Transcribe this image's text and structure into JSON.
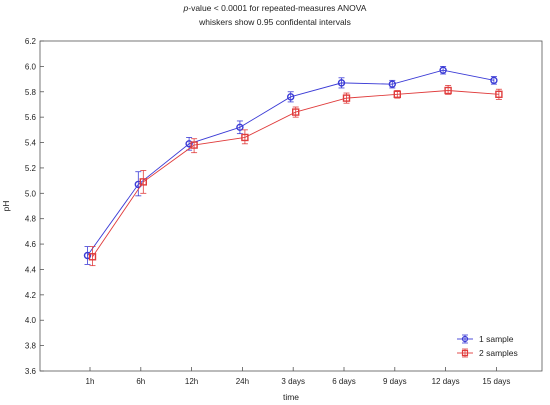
{
  "chart_data": {
    "type": "line",
    "title_italic": "p",
    "title_rest": "-value < 0.0001 for repeated-measures ANOVA",
    "subtitle": "whiskers show 0.95 confidental intervals",
    "xlabel": "time",
    "ylabel": "pH",
    "categories": [
      "1h",
      "6h",
      "12h",
      "24h",
      "3 days",
      "6 days",
      "9 days",
      "12 days",
      "15 days"
    ],
    "ylim": [
      3.6,
      6.2
    ],
    "yticks": [
      3.6,
      3.8,
      4.0,
      4.2,
      4.4,
      4.6,
      4.8,
      5.0,
      5.2,
      5.4,
      5.6,
      5.8,
      6.0,
      6.2
    ],
    "ytick_labels": [
      "3.6",
      "3.8",
      "4.0",
      "4.2",
      "4.4",
      "4.6",
      "4.8",
      "5.0",
      "5.2",
      "5.4",
      "5.6",
      "5.8",
      "6.0",
      "6.2"
    ],
    "grid": false,
    "legend_position": "bottom-right",
    "series": [
      {
        "name": "1 sample",
        "color": "#3b3bd6",
        "marker": "circle",
        "values": [
          4.51,
          5.07,
          5.39,
          5.52,
          5.76,
          5.87,
          5.86,
          5.97,
          5.89
        ],
        "ci_low": [
          4.44,
          4.98,
          5.34,
          5.47,
          5.72,
          5.83,
          5.83,
          5.94,
          5.86
        ],
        "ci_high": [
          4.58,
          5.17,
          5.44,
          5.57,
          5.8,
          5.91,
          5.89,
          6.0,
          5.92
        ]
      },
      {
        "name": "2 samples",
        "color": "#e03c3c",
        "marker": "square",
        "values": [
          4.5,
          5.09,
          5.38,
          5.44,
          5.64,
          5.75,
          5.78,
          5.81,
          5.78
        ],
        "ci_low": [
          4.43,
          5.0,
          5.32,
          5.39,
          5.6,
          5.71,
          5.75,
          5.78,
          5.74
        ],
        "ci_high": [
          4.58,
          5.18,
          5.43,
          5.5,
          5.68,
          5.79,
          5.81,
          5.85,
          5.82
        ]
      }
    ]
  }
}
